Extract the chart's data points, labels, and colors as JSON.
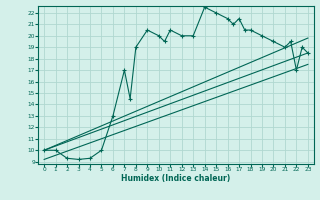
{
  "xlabel": "Humidex (Indice chaleur)",
  "bg_color": "#d4f0ea",
  "grid_color": "#b0d8d0",
  "line_color": "#006655",
  "xlim": [
    -0.5,
    23.5
  ],
  "ylim": [
    8.8,
    22.6
  ],
  "xtick_labels": [
    "0",
    "1",
    "2",
    "3",
    "4",
    "5",
    "6",
    "7",
    "8",
    "9",
    "10",
    "11",
    "12",
    "13",
    "14",
    "15",
    "16",
    "17",
    "18",
    "19",
    "20",
    "21",
    "22",
    "23"
  ],
  "yticks": [
    9,
    10,
    11,
    12,
    13,
    14,
    15,
    16,
    17,
    18,
    19,
    20,
    21,
    22
  ],
  "main_curve": [
    [
      0,
      10.0
    ],
    [
      1,
      10.0
    ],
    [
      2,
      9.3
    ],
    [
      3,
      9.2
    ],
    [
      4,
      9.3
    ],
    [
      5,
      10.0
    ],
    [
      6,
      13.0
    ],
    [
      7,
      17.0
    ],
    [
      7.5,
      14.5
    ],
    [
      8,
      19.0
    ],
    [
      9,
      20.5
    ],
    [
      10,
      20.0
    ],
    [
      10.5,
      19.5
    ],
    [
      11,
      20.5
    ],
    [
      12,
      20.0
    ],
    [
      13,
      20.0
    ],
    [
      14,
      22.5
    ],
    [
      15,
      22.0
    ],
    [
      16,
      21.5
    ],
    [
      16.5,
      21.0
    ],
    [
      17,
      21.5
    ],
    [
      17.5,
      20.5
    ],
    [
      18,
      20.5
    ],
    [
      19,
      20.0
    ],
    [
      20,
      19.5
    ],
    [
      21,
      19.0
    ],
    [
      21.5,
      19.5
    ],
    [
      22,
      17.0
    ],
    [
      22.5,
      19.0
    ],
    [
      23,
      18.5
    ]
  ],
  "line1": [
    [
      0,
      10.0
    ],
    [
      23,
      18.5
    ]
  ],
  "line2": [
    [
      0,
      10.0
    ],
    [
      23,
      19.8
    ]
  ],
  "line3": [
    [
      0,
      9.2
    ],
    [
      23,
      17.5
    ]
  ]
}
